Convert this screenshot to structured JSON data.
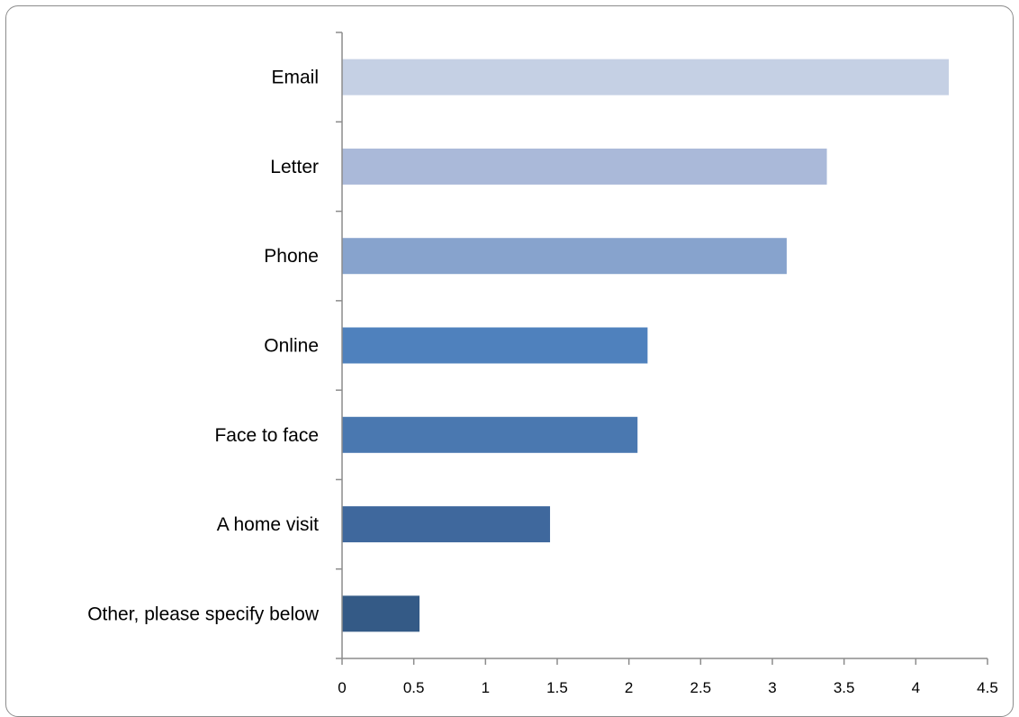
{
  "chart_data": {
    "type": "bar",
    "orientation": "horizontal",
    "categories": [
      "Email",
      "Letter",
      "Phone",
      "Online",
      "Face to face",
      "A home visit",
      "Other, please specify below"
    ],
    "values": [
      4.23,
      3.38,
      3.1,
      2.13,
      2.06,
      1.45,
      0.54
    ],
    "bar_colors": [
      "#c5d0e4",
      "#aab9d9",
      "#87a3cd",
      "#4f81bd",
      "#4a78b0",
      "#3f689d",
      "#345a86"
    ],
    "x_ticks": [
      "0",
      "0.5",
      "1",
      "1.5",
      "2",
      "2.5",
      "3",
      "3.5",
      "4",
      "4.5"
    ],
    "xlim": [
      0,
      4.5
    ],
    "title": "",
    "xlabel": "",
    "ylabel": "",
    "grid": false,
    "legend": "none"
  }
}
